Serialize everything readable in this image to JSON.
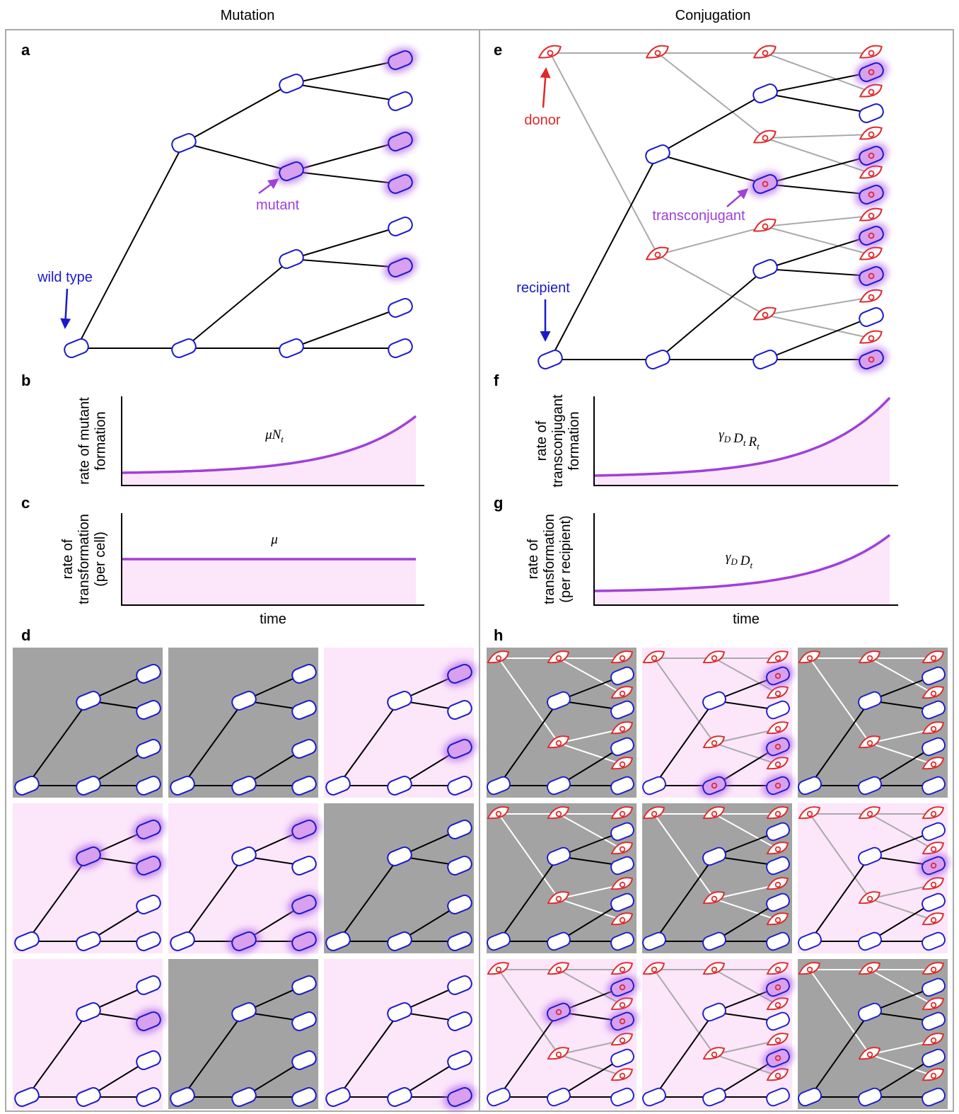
{
  "headers": [
    "Mutation",
    "Conjugation"
  ],
  "panel_letters": [
    "a",
    "b",
    "c",
    "d",
    "e",
    "f",
    "g",
    "h"
  ],
  "annotations": {
    "mutant": "mutant",
    "wild_type": "wild type",
    "donor": "donor",
    "recipient": "recipient",
    "transconjugant": "transconjugant"
  },
  "plots": [
    {
      "ylabel": [
        "rate of mutant",
        "formation"
      ],
      "formula": [
        {
          "text": "μN",
          "sub": "t"
        }
      ]
    },
    {
      "ylabel": [
        "rate of",
        "transformation",
        "(per cell)"
      ],
      "formula": [
        {
          "text": "μ"
        }
      ],
      "xlabel": "time"
    },
    {
      "ylabel": [
        "rate of",
        "transconjugant",
        "formation"
      ],
      "formula": [
        {
          "text": "γ",
          "sub": "D"
        },
        {
          "text": "D",
          "sub": "t"
        },
        {
          "text": "R",
          "sub": "t"
        }
      ]
    },
    {
      "ylabel": [
        "rate of",
        "transformation",
        "(per recipient)"
      ],
      "formula": [
        {
          "text": "γ",
          "sub": "D"
        },
        {
          "text": "D",
          "sub": "t"
        }
      ],
      "xlabel": "time"
    }
  ]
}
